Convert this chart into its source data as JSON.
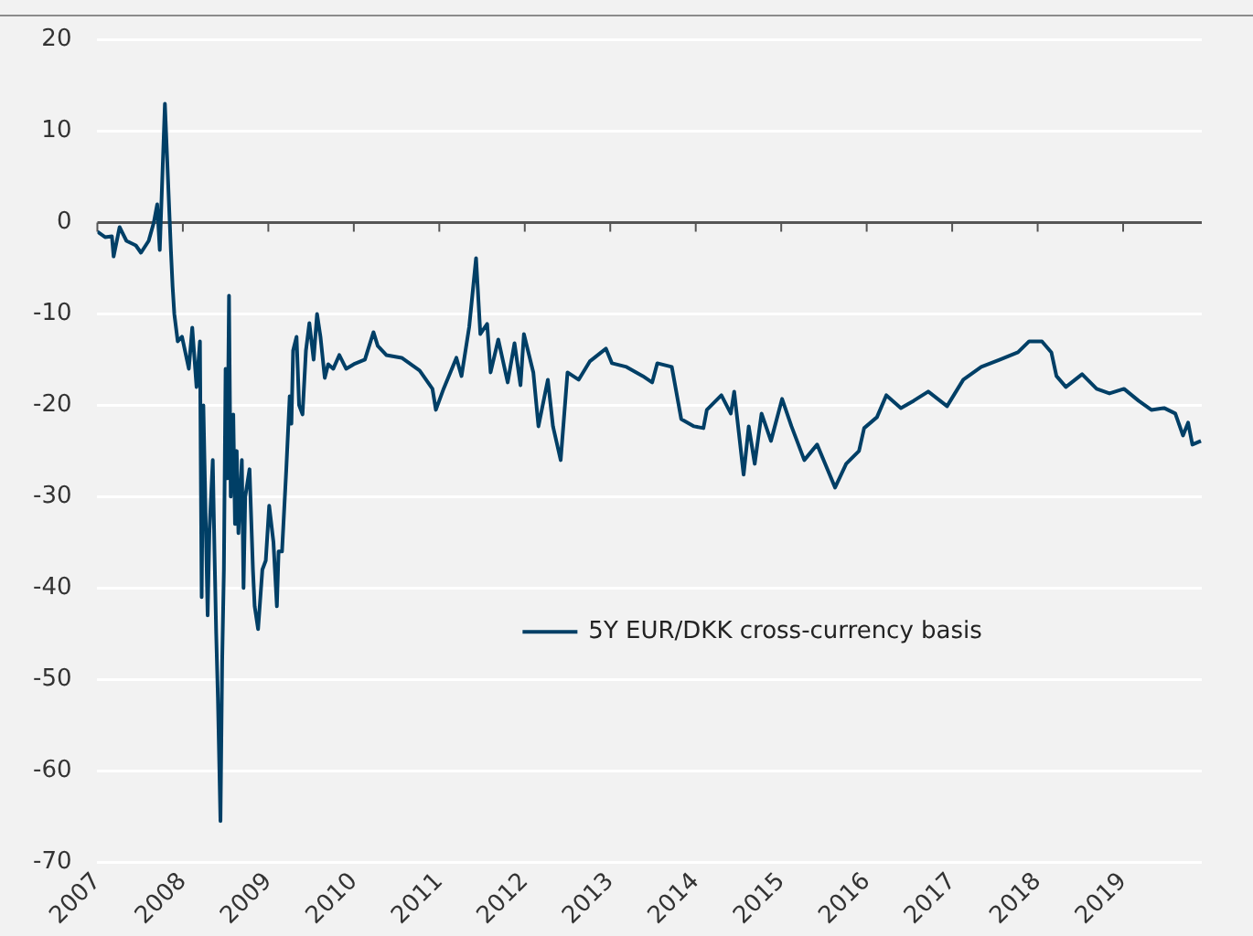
{
  "chart_data": {
    "type": "line",
    "xlim": [
      2007,
      2019.92
    ],
    "ylim": [
      -70,
      20
    ],
    "xticks": [
      2007,
      2008,
      2009,
      2010,
      2011,
      2012,
      2013,
      2014,
      2015,
      2016,
      2017,
      2018,
      2019
    ],
    "yticks": [
      -70,
      -60,
      -50,
      -40,
      -30,
      -20,
      -10,
      0,
      10,
      20
    ],
    "grid": "y",
    "legend": "bottom right",
    "marker": "none",
    "line_style": "solid",
    "series": [
      {
        "name": "5Y EUR/DKK cross-currency basis",
        "color": "#003f66",
        "x": [
          2007,
          2007.09,
          2007.17,
          2007.19,
          2007.26,
          2007.34,
          2007.45,
          2007.51,
          2007.6,
          2007.66,
          2007.7,
          2007.73,
          2007.79,
          2007.86,
          2007.88,
          2007.9,
          2007.94,
          2007.99,
          2008.07,
          2008.11,
          2008.16,
          2008.2,
          2008.22,
          2008.24,
          2008.29,
          2008.31,
          2008.35,
          2008.37,
          2008.39,
          2008.41,
          2008.44,
          2008.46,
          2008.48,
          2008.5,
          2008.52,
          2008.54,
          2008.56,
          2008.59,
          2008.61,
          2008.63,
          2008.65,
          2008.69,
          2008.71,
          2008.73,
          2008.78,
          2008.82,
          2008.84,
          2008.88,
          2008.93,
          2008.97,
          2009.01,
          2009.06,
          2009.1,
          2009.12,
          2009.16,
          2009.21,
          2009.25,
          2009.27,
          2009.29,
          2009.33,
          2009.36,
          2009.4,
          2009.44,
          2009.48,
          2009.53,
          2009.57,
          2009.61,
          2009.66,
          2009.7,
          2009.76,
          2009.83,
          2009.91,
          2010,
          2010.13,
          2010.23,
          2010.28,
          2010.38,
          2010.56,
          2010.77,
          2010.92,
          2010.96,
          2011.05,
          2011.2,
          2011.26,
          2011.35,
          2011.43,
          2011.48,
          2011.56,
          2011.6,
          2011.69,
          2011.8,
          2011.88,
          2011.95,
          2011.99,
          2012.1,
          2012.16,
          2012.27,
          2012.33,
          2012.42,
          2012.5,
          2012.63,
          2012.76,
          2012.95,
          2013.02,
          2013.19,
          2013.38,
          2013.49,
          2013.55,
          2013.72,
          2013.83,
          2013.98,
          2014.09,
          2014.13,
          2014.3,
          2014.41,
          2014.45,
          2014.56,
          2014.62,
          2014.69,
          2014.77,
          2014.88,
          2015.01,
          2015.12,
          2015.27,
          2015.42,
          2015.63,
          2015.76,
          2015.91,
          2015.97,
          2016.12,
          2016.23,
          2016.4,
          2016.55,
          2016.72,
          2016.94,
          2017.13,
          2017.34,
          2017.56,
          2017.77,
          2017.9,
          2018.05,
          2018.16,
          2018.22,
          2018.33,
          2018.52,
          2018.69,
          2018.84,
          2019.01,
          2019.18,
          2019.33,
          2019.48,
          2019.61,
          2019.7,
          2019.76,
          2019.81,
          2019.91
        ],
        "values": [
          -1,
          -1.6,
          -1.5,
          -3.7,
          -0.5,
          -2,
          -2.5,
          -3.3,
          -2,
          0,
          2,
          -3,
          13,
          -3,
          -7,
          -10,
          -13,
          -12.5,
          -16,
          -11.5,
          -18,
          -13,
          -41,
          -20,
          -43,
          -34,
          -26,
          -36,
          -45,
          -52,
          -65.5,
          -48,
          -38,
          -16,
          -28,
          -8,
          -30,
          -21,
          -33,
          -25,
          -34,
          -26,
          -40,
          -30,
          -27,
          -38,
          -42,
          -44.5,
          -38,
          -37,
          -31,
          -35,
          -42,
          -36,
          -36,
          -27,
          -19,
          -22,
          -14,
          -12.5,
          -20,
          -21,
          -14,
          -11,
          -15,
          -10,
          -12.5,
          -17,
          -15.5,
          -16,
          -14.5,
          -16,
          -15.5,
          -15,
          -12,
          -13.5,
          -14.5,
          -14.8,
          -16.2,
          -18.2,
          -20.5,
          -18.2,
          -14.8,
          -16.8,
          -11.4,
          -3.9,
          -12.2,
          -11.1,
          -16.4,
          -12.8,
          -17.5,
          -13.2,
          -17.8,
          -12.2,
          -16.4,
          -22.3,
          -17.2,
          -22.3,
          -26,
          -16.4,
          -17.2,
          -15.2,
          -13.8,
          -15.4,
          -15.8,
          -16.8,
          -17.5,
          -15.4,
          -15.8,
          -21.5,
          -22.3,
          -22.5,
          -20.5,
          -18.9,
          -20.9,
          -18.5,
          -27.6,
          -22.3,
          -26.4,
          -20.9,
          -23.9,
          -19.3,
          -22.3,
          -26,
          -24.3,
          -29,
          -26.4,
          -25,
          -22.5,
          -21.3,
          -18.9,
          -20.3,
          -19.5,
          -18.5,
          -20.1,
          -17.2,
          -15.8,
          -15,
          -14.2,
          -13,
          -13,
          -14.2,
          -16.8,
          -18,
          -16.6,
          -18.2,
          -18.7,
          -18.2,
          -19.5,
          -20.5,
          -20.3,
          -20.9,
          -23.3,
          -21.9,
          -24.3,
          -23.9
        ]
      }
    ]
  }
}
